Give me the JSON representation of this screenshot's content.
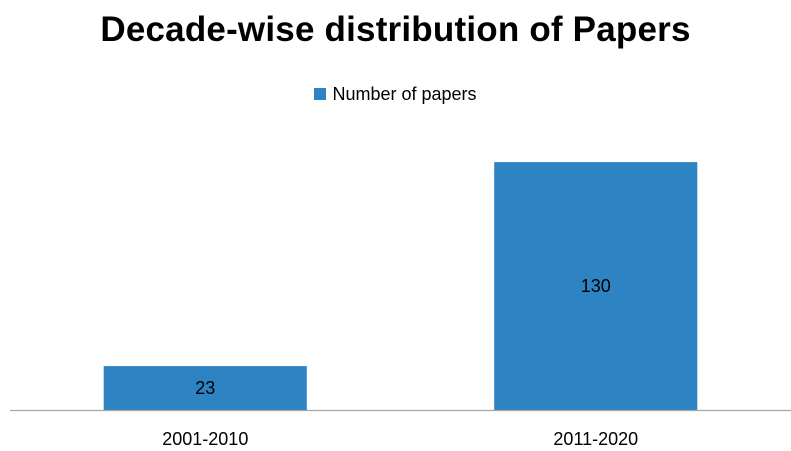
{
  "chart_data": {
    "type": "bar",
    "title": "Decade-wise distribution of Papers",
    "categories": [
      "2001-2010",
      "2011-2020"
    ],
    "series": [
      {
        "name": "Number of papers",
        "values": [
          23,
          130
        ],
        "color": "#2e83c3"
      }
    ],
    "legend_position": "top",
    "grid": false,
    "ylim": [
      0,
      140
    ],
    "axis_color": "#a6a6a6",
    "data_labels": true
  }
}
